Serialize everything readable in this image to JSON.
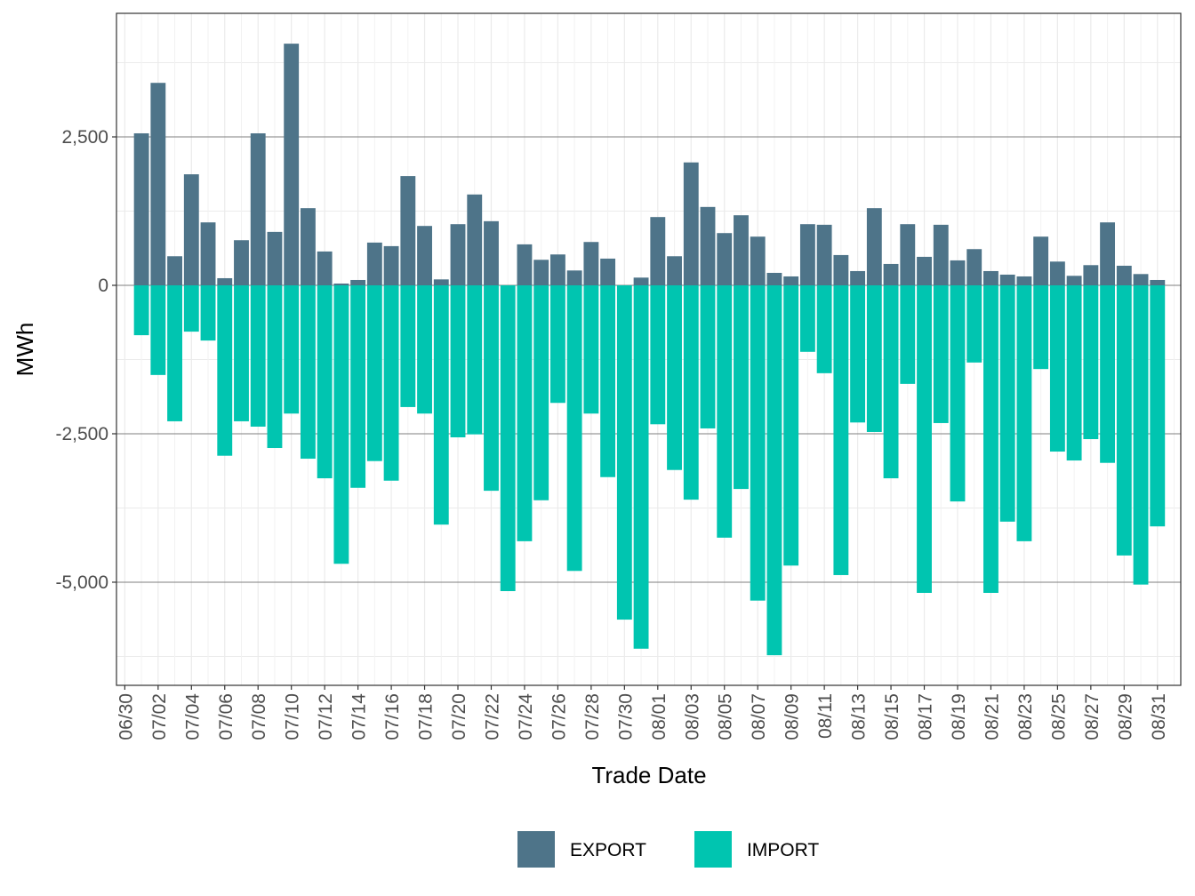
{
  "chart_data": {
    "type": "bar",
    "x_label": "Trade Date",
    "y_label": "MWh",
    "x": [
      1,
      2,
      3,
      4,
      5,
      6,
      7,
      8,
      9,
      10,
      11,
      12,
      13,
      14,
      15,
      16,
      17,
      18,
      19,
      20,
      21,
      22,
      23,
      24,
      25,
      26,
      27,
      28,
      29,
      30,
      31,
      32,
      33,
      34,
      35,
      36,
      37,
      38,
      39,
      40,
      41,
      42,
      43,
      44,
      45,
      46,
      47,
      48,
      49,
      50,
      51,
      52,
      53,
      54,
      55,
      56,
      57,
      58,
      59,
      60,
      61,
      62
    ],
    "xlim": [
      -0.5,
      63.4
    ],
    "xticks": [
      {
        "value": 0,
        "label": "06/30"
      },
      {
        "value": 2,
        "label": "07/02"
      },
      {
        "value": 4,
        "label": "07/04"
      },
      {
        "value": 6,
        "label": "07/06"
      },
      {
        "value": 8,
        "label": "07/08"
      },
      {
        "value": 10,
        "label": "07/10"
      },
      {
        "value": 12,
        "label": "07/12"
      },
      {
        "value": 14,
        "label": "07/14"
      },
      {
        "value": 16,
        "label": "07/16"
      },
      {
        "value": 18,
        "label": "07/18"
      },
      {
        "value": 20,
        "label": "07/20"
      },
      {
        "value": 22,
        "label": "07/22"
      },
      {
        "value": 24,
        "label": "07/24"
      },
      {
        "value": 26,
        "label": "07/26"
      },
      {
        "value": 28,
        "label": "07/28"
      },
      {
        "value": 30,
        "label": "07/30"
      },
      {
        "value": 32,
        "label": "08/01"
      },
      {
        "value": 34,
        "label": "08/03"
      },
      {
        "value": 36,
        "label": "08/05"
      },
      {
        "value": 38,
        "label": "08/07"
      },
      {
        "value": 40,
        "label": "08/09"
      },
      {
        "value": 42,
        "label": "08/11"
      },
      {
        "value": 44,
        "label": "08/13"
      },
      {
        "value": 46,
        "label": "08/15"
      },
      {
        "value": 48,
        "label": "08/17"
      },
      {
        "value": 50,
        "label": "08/19"
      },
      {
        "value": 52,
        "label": "08/21"
      },
      {
        "value": 54,
        "label": "08/23"
      },
      {
        "value": 56,
        "label": "08/25"
      },
      {
        "value": 58,
        "label": "08/27"
      },
      {
        "value": 60,
        "label": "08/29"
      },
      {
        "value": 62,
        "label": "08/31"
      }
    ],
    "ylim": [
      -6737,
      4581
    ],
    "yticks": [
      {
        "value": -5000,
        "label": "-5,000"
      },
      {
        "value": -2500,
        "label": "-2,500"
      },
      0,
      {
        "value": 2500,
        "label": "2,500"
      }
    ],
    "grid": true,
    "legend": "bottom",
    "series": [
      {
        "name": "EXPORT",
        "color": "#4e7489",
        "values": [
          2560,
          3410,
          490,
          1870,
          1060,
          120,
          760,
          2560,
          900,
          4070,
          1300,
          570,
          30,
          90,
          720,
          660,
          1840,
          1000,
          100,
          1030,
          1530,
          1080,
          0,
          690,
          430,
          520,
          250,
          730,
          450,
          0,
          130,
          1150,
          490,
          2070,
          1320,
          880,
          1180,
          820,
          210,
          150,
          1030,
          1020,
          510,
          240,
          1300,
          360,
          1030,
          480,
          1020,
          420,
          610,
          240,
          180,
          150,
          820,
          400,
          160,
          340,
          1060,
          330,
          190,
          90
        ]
      },
      {
        "name": "IMPORT",
        "color": "#00c5b0",
        "values": [
          -840,
          -1510,
          -2290,
          -780,
          -930,
          -2870,
          -2290,
          -2380,
          -2740,
          -2160,
          -2920,
          -3250,
          -4690,
          -3410,
          -2960,
          -3290,
          -2050,
          -2160,
          -4030,
          -2560,
          -2510,
          -3460,
          -5150,
          -4310,
          -3620,
          -1980,
          -4810,
          -2160,
          -3230,
          -5630,
          -6120,
          -2340,
          -3110,
          -3610,
          -2410,
          -4250,
          -3430,
          -5310,
          -6230,
          -4720,
          -1120,
          -1480,
          -4880,
          -2310,
          -2470,
          -3250,
          -1660,
          -5180,
          -2320,
          -3640,
          -1300,
          -5180,
          -3980,
          -4310,
          -1410,
          -2800,
          -2950,
          -2590,
          -2990,
          -4550,
          -5040,
          -4060
        ]
      }
    ]
  }
}
